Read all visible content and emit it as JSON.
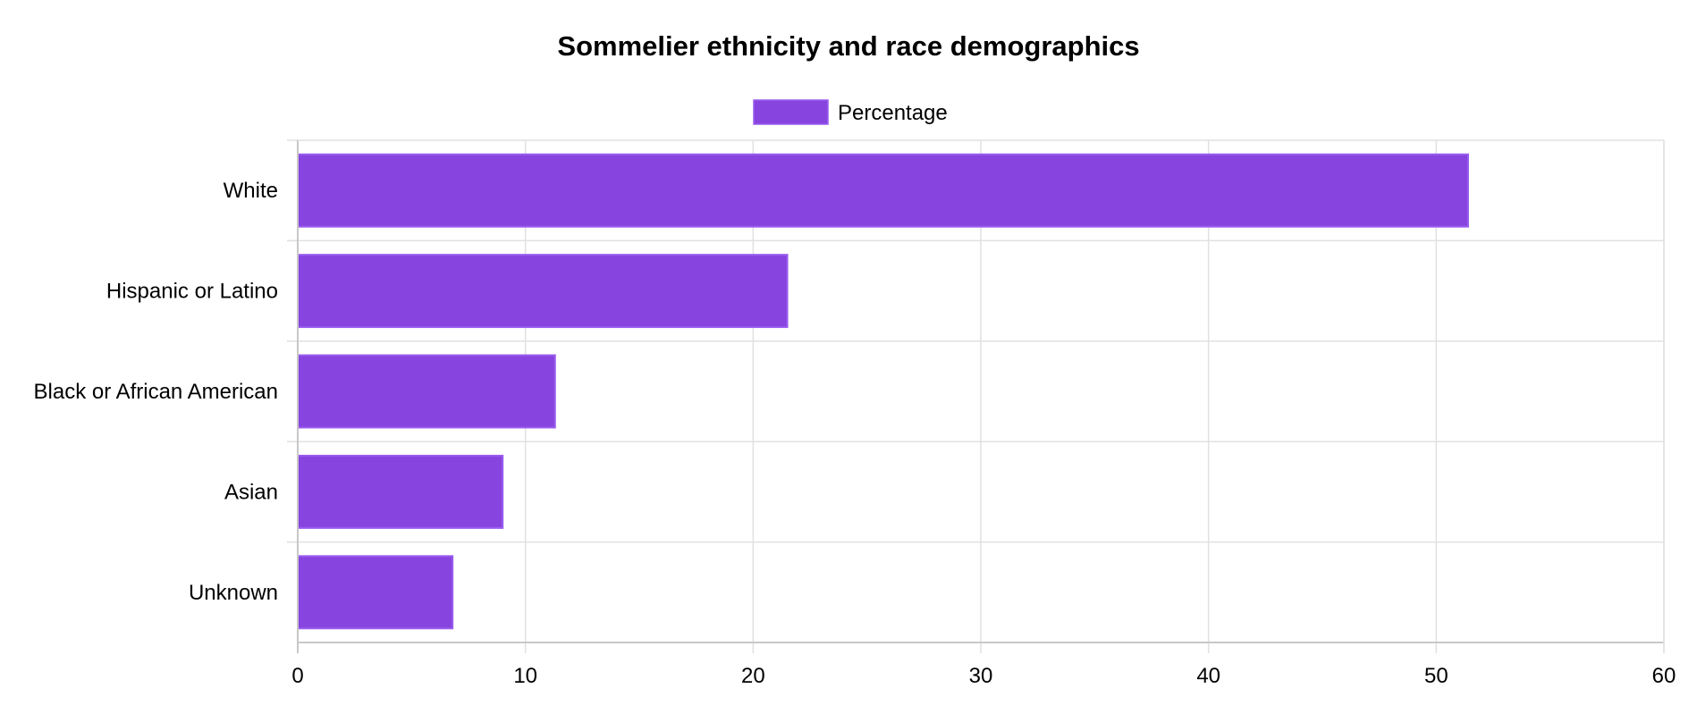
{
  "chart_data": {
    "type": "bar",
    "orientation": "horizontal",
    "title": "Sommelier ethnicity and race demographics",
    "categories": [
      "White",
      "Hispanic or Latino",
      "Black or African American",
      "Asian",
      "Unknown"
    ],
    "series": [
      {
        "name": "Percentage",
        "values": [
          51.4,
          21.5,
          11.3,
          9.0,
          6.8
        ]
      }
    ],
    "xlim": [
      0,
      60
    ],
    "x_ticks": [
      0,
      10,
      20,
      30,
      40,
      50,
      60
    ],
    "xlabel": "",
    "ylabel": "",
    "grid": true,
    "legend": "top-center",
    "colors": {
      "bar_fill": "#8744de",
      "bar_stroke": "#9a5cf0"
    }
  }
}
